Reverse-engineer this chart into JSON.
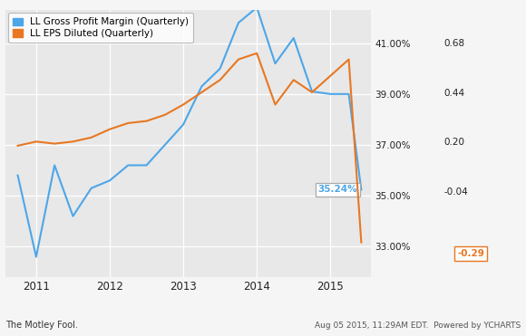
{
  "legend_entries": [
    "LL Gross Profit Margin (Quarterly)",
    "LL EPS Diluted (Quarterly)"
  ],
  "line1_color": "#4da6e8",
  "line2_color": "#e87722",
  "plot_bg_color": "#e8e8e8",
  "outer_bg_color": "#f5f5f5",
  "grid_color": "#ffffff",
  "left_ylim": [
    0.318,
    0.423
  ],
  "right_ylim": [
    -0.46,
    0.84
  ],
  "left_yticks": [
    0.33,
    0.35,
    0.37,
    0.39,
    0.41
  ],
  "left_ytick_labels": [
    "33.00%",
    "35.00%",
    "37.00%",
    "39.00%",
    "41.00%"
  ],
  "right_yticks": [
    -0.04,
    0.2,
    0.44,
    0.68
  ],
  "right_ytick_labels": [
    "-0.04",
    "0.20",
    "0.44",
    "0.68"
  ],
  "gpm_x": [
    2010.75,
    2011.0,
    2011.25,
    2011.5,
    2011.75,
    2012.0,
    2012.25,
    2012.5,
    2012.75,
    2013.0,
    2013.25,
    2013.5,
    2013.75,
    2014.0,
    2014.25,
    2014.5,
    2014.75,
    2015.0,
    2015.25,
    2015.42
  ],
  "gpm_y": [
    0.358,
    0.326,
    0.362,
    0.342,
    0.353,
    0.356,
    0.362,
    0.362,
    0.37,
    0.378,
    0.393,
    0.4,
    0.418,
    0.424,
    0.402,
    0.412,
    0.391,
    0.39,
    0.39,
    0.3524
  ],
  "eps_x": [
    2010.75,
    2011.0,
    2011.25,
    2011.5,
    2011.75,
    2012.0,
    2012.25,
    2012.5,
    2012.75,
    2013.0,
    2013.25,
    2013.5,
    2013.75,
    2014.0,
    2014.25,
    2014.5,
    2014.75,
    2015.0,
    2015.25,
    2015.42
  ],
  "eps_y": [
    0.18,
    0.2,
    0.19,
    0.2,
    0.22,
    0.26,
    0.29,
    0.3,
    0.33,
    0.38,
    0.44,
    0.5,
    0.6,
    0.63,
    0.38,
    0.5,
    0.44,
    0.52,
    0.6,
    -0.29
  ],
  "annotation_blue_text": "35.24%",
  "annotation_orange_text": "-0.29",
  "xlim": [
    2010.58,
    2015.55
  ],
  "xticks": [
    2011.0,
    2012.0,
    2013.0,
    2014.0,
    2015.0
  ],
  "xtick_labels": [
    "2011",
    "2012",
    "2013",
    "2014",
    "2015"
  ],
  "footer_left": "The Motley Fool.",
  "footer_right": "Aug 05 2015, 11:29AM EDT.  Powered by YCHARTS"
}
